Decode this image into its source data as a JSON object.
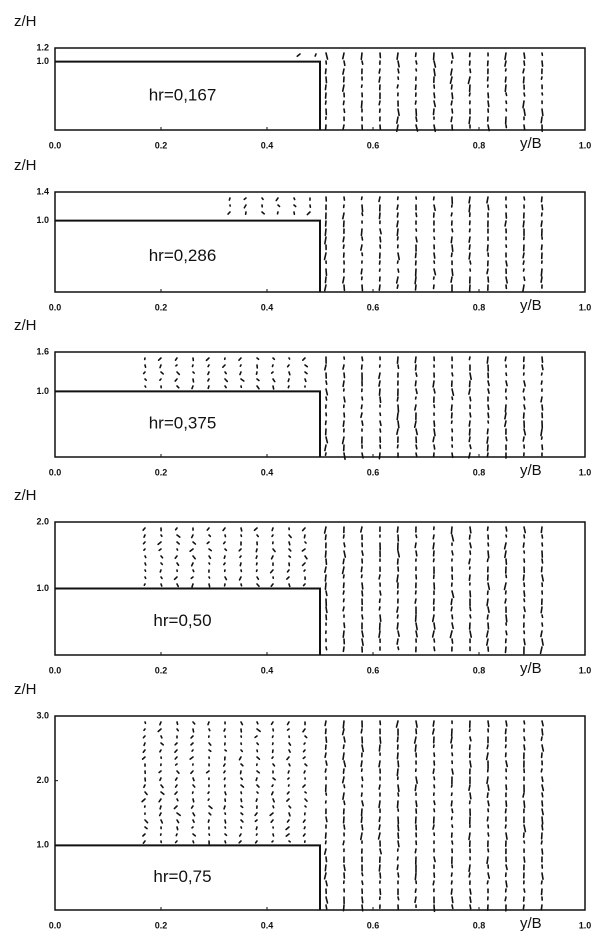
{
  "chart_data": [
    {
      "type": "vector",
      "annotation": "hr=0,167",
      "xlabel": "y/B",
      "ylabel": "z/H",
      "xlim": [
        0,
        1
      ],
      "xticks": [
        {
          "value": 0,
          "label": "0.0"
        },
        0.2,
        0.4,
        0.6,
        0.8,
        {
          "value": 1,
          "label": "1.0"
        }
      ],
      "ylim": [
        0,
        1.2
      ],
      "yticks": [
        {
          "value": 1,
          "label": "1.0"
        },
        1.2
      ]
    },
    {
      "type": "vector",
      "annotation": "hr=0,286",
      "xlabel": "y/B",
      "ylabel": "z/H",
      "xlim": [
        0,
        1
      ],
      "xticks": [
        {
          "value": 0,
          "label": "0.0"
        },
        0.2,
        0.4,
        0.6,
        0.8,
        {
          "value": 1,
          "label": "1.0"
        }
      ],
      "ylim": [
        0,
        1.4
      ],
      "yticks": [
        {
          "value": 1,
          "label": "1.0"
        },
        1.4
      ]
    },
    {
      "type": "vector",
      "annotation": "hr=0,375",
      "xlabel": "y/B",
      "ylabel": "z/H",
      "xlim": [
        0,
        1
      ],
      "xticks": [
        {
          "value": 0,
          "label": "0.0"
        },
        0.2,
        0.4,
        0.6,
        0.8,
        {
          "value": 1,
          "label": "1.0"
        }
      ],
      "ylim": [
        0,
        1.6
      ],
      "yticks": [
        {
          "value": 1,
          "label": "1.0"
        },
        1.6
      ]
    },
    {
      "type": "vector",
      "annotation": "hr=0,50",
      "xlabel": "y/B",
      "ylabel": "z/H",
      "xlim": [
        0,
        1
      ],
      "xticks": [
        {
          "value": 0,
          "label": "0.0"
        },
        0.2,
        0.4,
        0.6,
        0.8,
        {
          "value": 1,
          "label": "1.0"
        }
      ],
      "ylim": [
        0,
        2
      ],
      "yticks": [
        {
          "value": 1,
          "label": "1.0"
        },
        {
          "value": 2,
          "label": "2.0"
        }
      ]
    },
    {
      "type": "vector",
      "annotation": "hr=0,75",
      "xlabel": "y/B",
      "ylabel": "z/H",
      "xlim": [
        0,
        1
      ],
      "xticks": [
        {
          "value": 0,
          "label": "0.0"
        },
        0.2,
        0.4,
        0.6,
        0.8,
        {
          "value": 1,
          "label": "1.0"
        }
      ],
      "ylim": [
        0,
        3
      ],
      "yticks": [
        {
          "value": 1,
          "label": "1.0"
        },
        {
          "value": 2,
          "label": "2.0"
        },
        {
          "value": 3,
          "label": "3.0"
        }
      ]
    }
  ]
}
